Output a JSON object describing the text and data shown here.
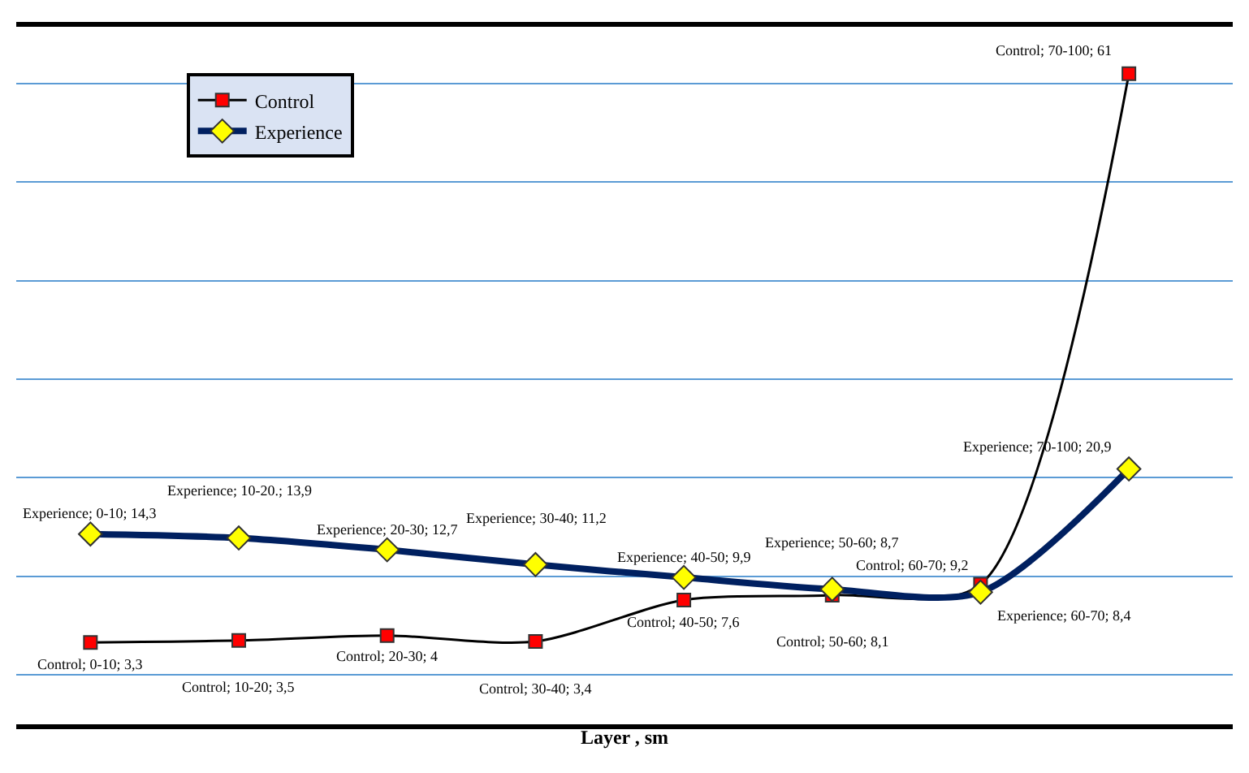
{
  "chart_data": {
    "type": "line",
    "xlabel": "Layer , sm",
    "categories": [
      null,
      null,
      null,
      null,
      null,
      null,
      null,
      null
    ],
    "series": [
      {
        "name": "Control",
        "color": "#000000",
        "colors": [
          "#ff0000",
          "#ff0000",
          "#ff0000",
          "#ff0000",
          "#ff0000",
          "#ff0000",
          "#ff0000",
          "#ff0000"
        ],
        "marker": "square",
        "values": [
          3.3,
          3.5,
          4,
          3.4,
          7.6,
          8.1,
          9.2,
          61
        ],
        "value_labels": [
          "Control; 0-10; 3,3",
          "Control; 10-20; 3,5",
          "Control; 20-30; 4",
          "Control; 30-40; 3,4",
          "Control; 40-50; 7,6",
          "Control; 50-60; 8,1",
          "Control; 60-70; 9,2",
          "Control; 70-100; 61"
        ]
      },
      {
        "name": "Experience",
        "color": "#002060",
        "colors": [
          "#ffff00",
          "#ffff00",
          "#ffff00",
          "#ffff00",
          "#ffff00",
          "#ffff00",
          "#ffff00",
          "#ffff00"
        ],
        "marker": "diamond",
        "values": [
          14.3,
          13.9,
          12.7,
          11.2,
          9.9,
          8.7,
          8.4,
          20.9
        ],
        "value_labels": [
          "Experience; 0-10; 14,3",
          "Experience; 10-20.; 13,9",
          "Experience; 20-30; 12,7",
          "Experience; 30-40; 11,2",
          "Experience; 40-50; 9,9",
          "Experience; 50-60; 8,7",
          "Experience; 60-70; 8,4",
          "Experience; 70-100; 20,9"
        ]
      }
    ],
    "ylim": [
      -5,
      66
    ],
    "yticks": [
      {
        "value": 0,
        "label": null
      },
      {
        "value": 10,
        "label": null
      },
      {
        "value": 20,
        "label": null
      },
      {
        "value": 30,
        "label": null
      },
      {
        "value": 40,
        "label": null
      },
      {
        "value": 50,
        "label": null
      },
      {
        "value": 60,
        "label": null
      }
    ],
    "grid": "y",
    "legend": "top left",
    "tick_labels": false,
    "line_style": "solid"
  }
}
